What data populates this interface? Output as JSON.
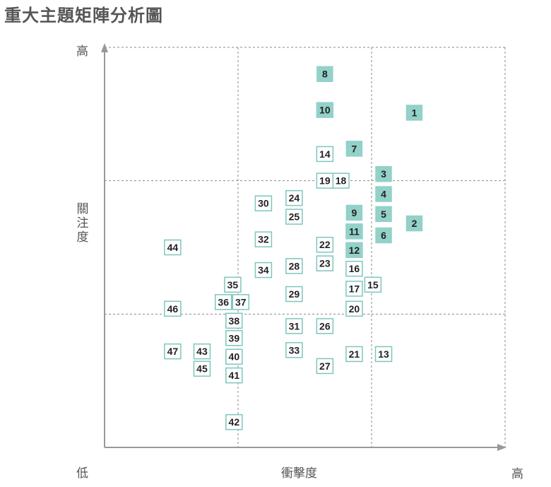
{
  "title": "重大主題矩陣分析圖",
  "colors": {
    "filled": "#93d1c9",
    "outline": "#7ec6be",
    "axis": "#999999",
    "grid": "#888888"
  },
  "chart_data": {
    "type": "scatter",
    "title": "重大主題矩陣分析圖",
    "xlabel": "衝擊度",
    "ylabel": "關注度",
    "x_low_label": "低",
    "x_high_label": "高",
    "y_high_label": "高",
    "xlim": [
      0,
      3
    ],
    "ylim": [
      0,
      3
    ],
    "grid": "dashed thirds",
    "points": [
      {
        "label": "1",
        "x": 2.32,
        "y": 2.51,
        "filled": true
      },
      {
        "label": "2",
        "x": 2.32,
        "y": 1.68,
        "filled": true
      },
      {
        "label": "3",
        "x": 2.09,
        "y": 2.05,
        "filled": true
      },
      {
        "label": "4",
        "x": 2.09,
        "y": 1.9,
        "filled": true
      },
      {
        "label": "5",
        "x": 2.09,
        "y": 1.75,
        "filled": true
      },
      {
        "label": "6",
        "x": 2.09,
        "y": 1.59,
        "filled": true
      },
      {
        "label": "7",
        "x": 1.87,
        "y": 2.24,
        "filled": true
      },
      {
        "label": "8",
        "x": 1.65,
        "y": 2.8,
        "filled": true
      },
      {
        "label": "9",
        "x": 1.87,
        "y": 1.76,
        "filled": true
      },
      {
        "label": "10",
        "x": 1.65,
        "y": 2.53,
        "filled": true
      },
      {
        "label": "11",
        "x": 1.87,
        "y": 1.62,
        "filled": true
      },
      {
        "label": "12",
        "x": 1.87,
        "y": 1.48,
        "filled": true
      },
      {
        "label": "13",
        "x": 2.09,
        "y": 0.7,
        "filled": false
      },
      {
        "label": "14",
        "x": 1.65,
        "y": 2.2,
        "filled": false
      },
      {
        "label": "15",
        "x": 2.01,
        "y": 1.22,
        "filled": false
      },
      {
        "label": "16",
        "x": 1.87,
        "y": 1.34,
        "filled": false
      },
      {
        "label": "17",
        "x": 1.87,
        "y": 1.19,
        "filled": false
      },
      {
        "label": "18",
        "x": 1.77,
        "y": 2.0,
        "filled": false
      },
      {
        "label": "19",
        "x": 1.65,
        "y": 2.0,
        "filled": false
      },
      {
        "label": "20",
        "x": 1.87,
        "y": 1.04,
        "filled": false
      },
      {
        "label": "21",
        "x": 1.87,
        "y": 0.7,
        "filled": false
      },
      {
        "label": "22",
        "x": 1.65,
        "y": 1.52,
        "filled": false
      },
      {
        "label": "23",
        "x": 1.65,
        "y": 1.38,
        "filled": false
      },
      {
        "label": "24",
        "x": 1.42,
        "y": 1.87,
        "filled": false
      },
      {
        "label": "25",
        "x": 1.42,
        "y": 1.73,
        "filled": false
      },
      {
        "label": "26",
        "x": 1.65,
        "y": 0.91,
        "filled": false
      },
      {
        "label": "27",
        "x": 1.65,
        "y": 0.61,
        "filled": false
      },
      {
        "label": "28",
        "x": 1.42,
        "y": 1.36,
        "filled": false
      },
      {
        "label": "29",
        "x": 1.42,
        "y": 1.15,
        "filled": false
      },
      {
        "label": "30",
        "x": 1.19,
        "y": 1.83,
        "filled": false
      },
      {
        "label": "31",
        "x": 1.42,
        "y": 0.91,
        "filled": false
      },
      {
        "label": "32",
        "x": 1.19,
        "y": 1.56,
        "filled": false
      },
      {
        "label": "33",
        "x": 1.42,
        "y": 0.73,
        "filled": false
      },
      {
        "label": "34",
        "x": 1.19,
        "y": 1.33,
        "filled": false
      },
      {
        "label": "35",
        "x": 0.96,
        "y": 1.22,
        "filled": false
      },
      {
        "label": "36",
        "x": 0.89,
        "y": 1.09,
        "filled": false
      },
      {
        "label": "37",
        "x": 1.02,
        "y": 1.09,
        "filled": false
      },
      {
        "label": "38",
        "x": 0.97,
        "y": 0.95,
        "filled": false
      },
      {
        "label": "39",
        "x": 0.97,
        "y": 0.82,
        "filled": false
      },
      {
        "label": "40",
        "x": 0.97,
        "y": 0.68,
        "filled": false
      },
      {
        "label": "41",
        "x": 0.97,
        "y": 0.54,
        "filled": false
      },
      {
        "label": "42",
        "x": 0.97,
        "y": 0.19,
        "filled": false
      },
      {
        "label": "43",
        "x": 0.73,
        "y": 0.72,
        "filled": false
      },
      {
        "label": "44",
        "x": 0.51,
        "y": 1.5,
        "filled": false
      },
      {
        "label": "45",
        "x": 0.73,
        "y": 0.59,
        "filled": false
      },
      {
        "label": "46",
        "x": 0.51,
        "y": 1.04,
        "filled": false
      },
      {
        "label": "47",
        "x": 0.51,
        "y": 0.72,
        "filled": false
      }
    ]
  }
}
